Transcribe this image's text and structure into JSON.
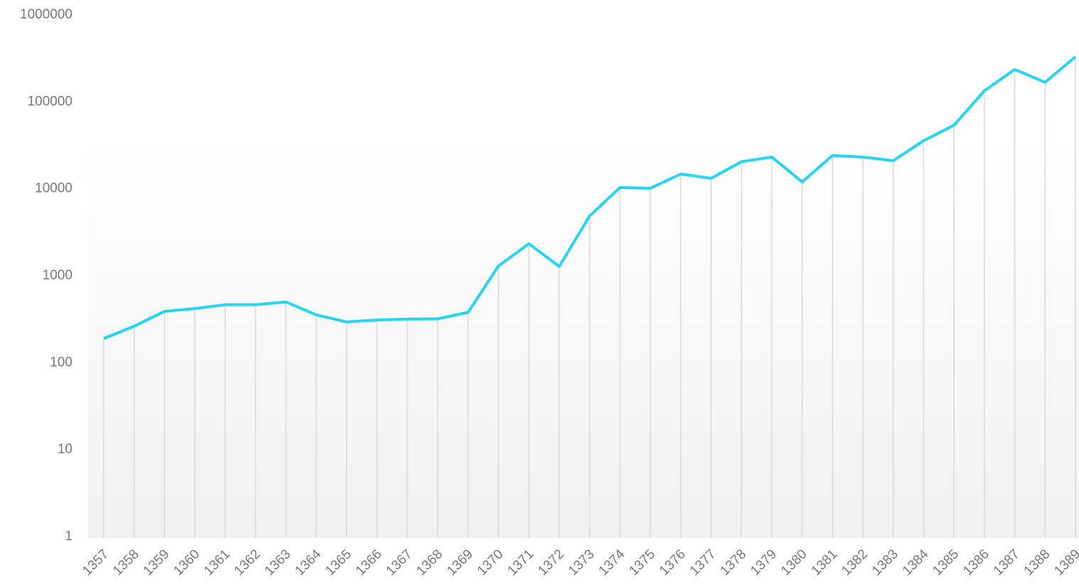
{
  "chart_data": {
    "type": "line",
    "categories": [
      "1357",
      "1358",
      "1359",
      "1360",
      "1361",
      "1362",
      "1363",
      "1364",
      "1365",
      "1366",
      "1367",
      "1368",
      "1369",
      "1370",
      "1371",
      "1372",
      "1373",
      "1374",
      "1375",
      "1376",
      "1377",
      "1378",
      "1379",
      "1380",
      "1381",
      "1382",
      "1383",
      "1384",
      "1385",
      "1386",
      "1387",
      "1388",
      "1389"
    ],
    "series": [
      {
        "color": "#25d5f2",
        "values": [
          190,
          263,
          390,
          420,
          465,
          465,
          500,
          355,
          295,
          310,
          318,
          320,
          380,
          1300,
          2340,
          1280,
          4870,
          10350,
          10150,
          14800,
          13200,
          20500,
          23200,
          12000,
          24200,
          23200,
          21100,
          35800,
          54000,
          134000,
          236000,
          168000,
          330000
        ]
      }
    ],
    "ylim": [
      1,
      1000000
    ],
    "yticks": [
      1,
      10,
      100,
      1000,
      10000,
      100000,
      1000000
    ],
    "log_scale": true,
    "drop_lines": true
  }
}
